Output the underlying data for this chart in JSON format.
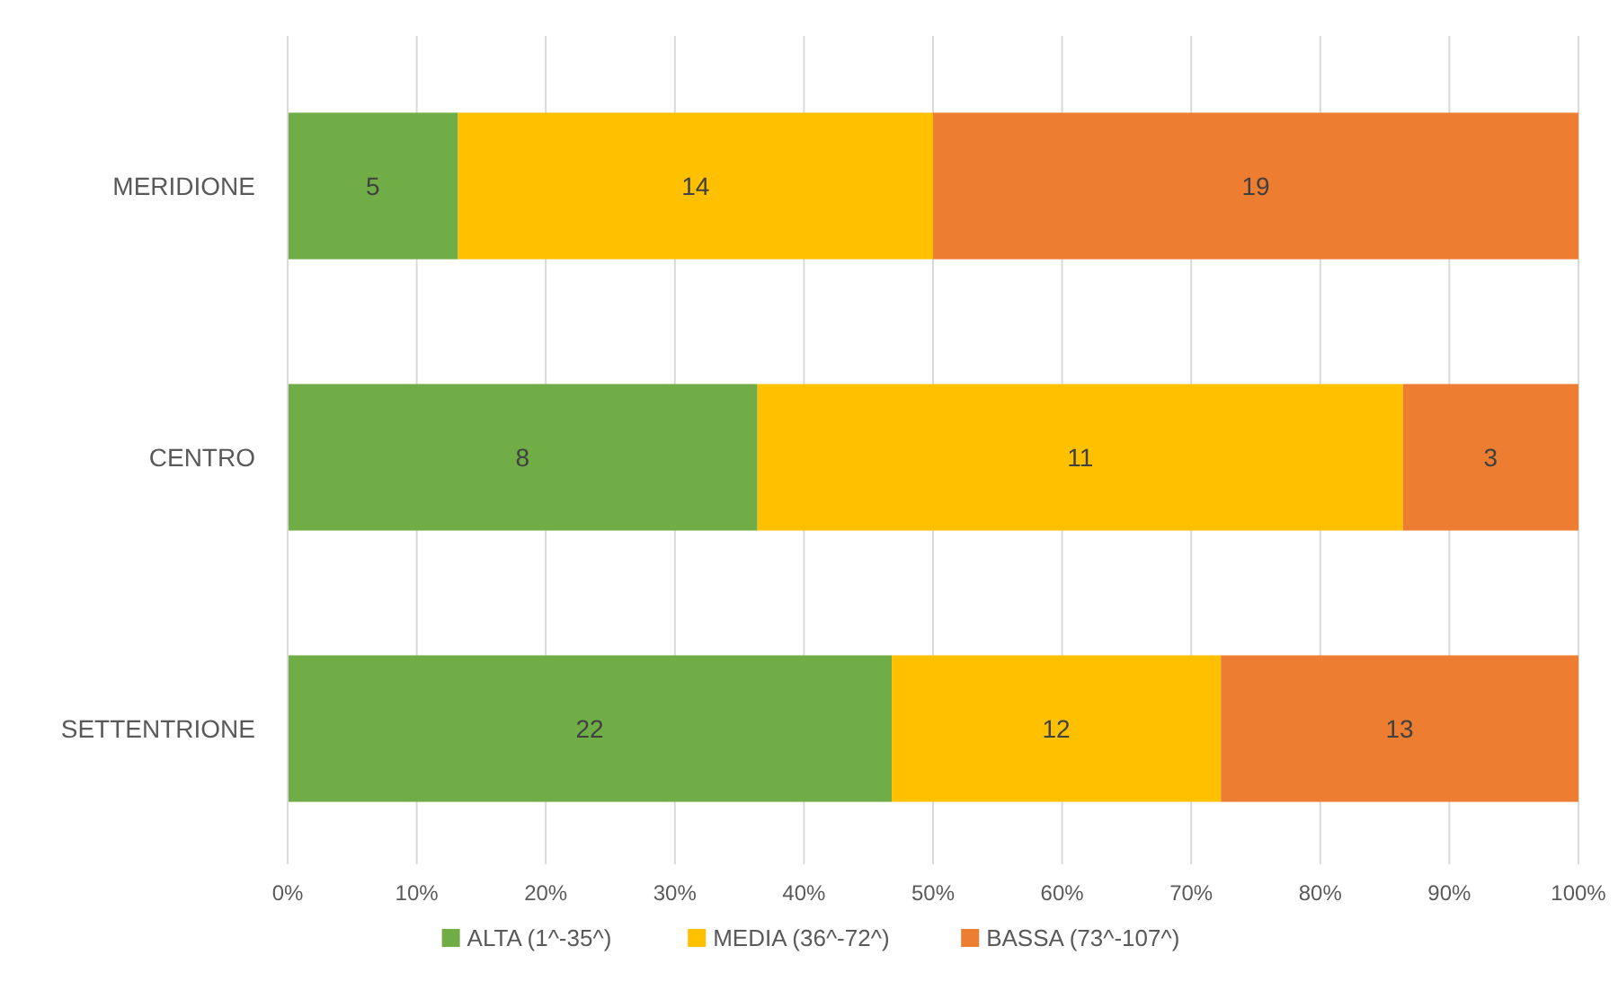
{
  "chart_data": {
    "type": "bar",
    "orientation": "horizontal",
    "stacked": true,
    "categories": [
      "MERIDIONE",
      "CENTRO",
      "SETTENTRIONE"
    ],
    "series": [
      {
        "name": "ALTA (1^-35^)",
        "color": "#70ad47",
        "values": [
          13.2,
          36.4,
          46.8
        ]
      },
      {
        "name": "MEDIA (36^-72^)",
        "color": "#ffc000",
        "values": [
          36.8,
          50.0,
          25.5
        ]
      },
      {
        "name": "BASSA (73^-107^)",
        "color": "#ed7d31",
        "values": [
          50.0,
          13.6,
          27.7
        ]
      }
    ],
    "annotations": [
      "5",
      "14",
      "19",
      "8",
      "11",
      "3",
      "22",
      "12",
      "13"
    ],
    "xlim": [
      0,
      100
    ],
    "xticks": [
      {
        "value": 0,
        "label": "0%"
      },
      {
        "value": 10,
        "label": "10%"
      },
      {
        "value": 20,
        "label": "20%"
      },
      {
        "value": 30,
        "label": "30%"
      },
      {
        "value": 40,
        "label": "40%"
      },
      {
        "value": 50,
        "label": "50%"
      },
      {
        "value": 60,
        "label": "60%"
      },
      {
        "value": 70,
        "label": "70%"
      },
      {
        "value": 80,
        "label": "80%"
      },
      {
        "value": 90,
        "label": "90%"
      },
      {
        "value": 100,
        "label": "100%"
      }
    ],
    "grid": "x",
    "legend": "bottom"
  }
}
